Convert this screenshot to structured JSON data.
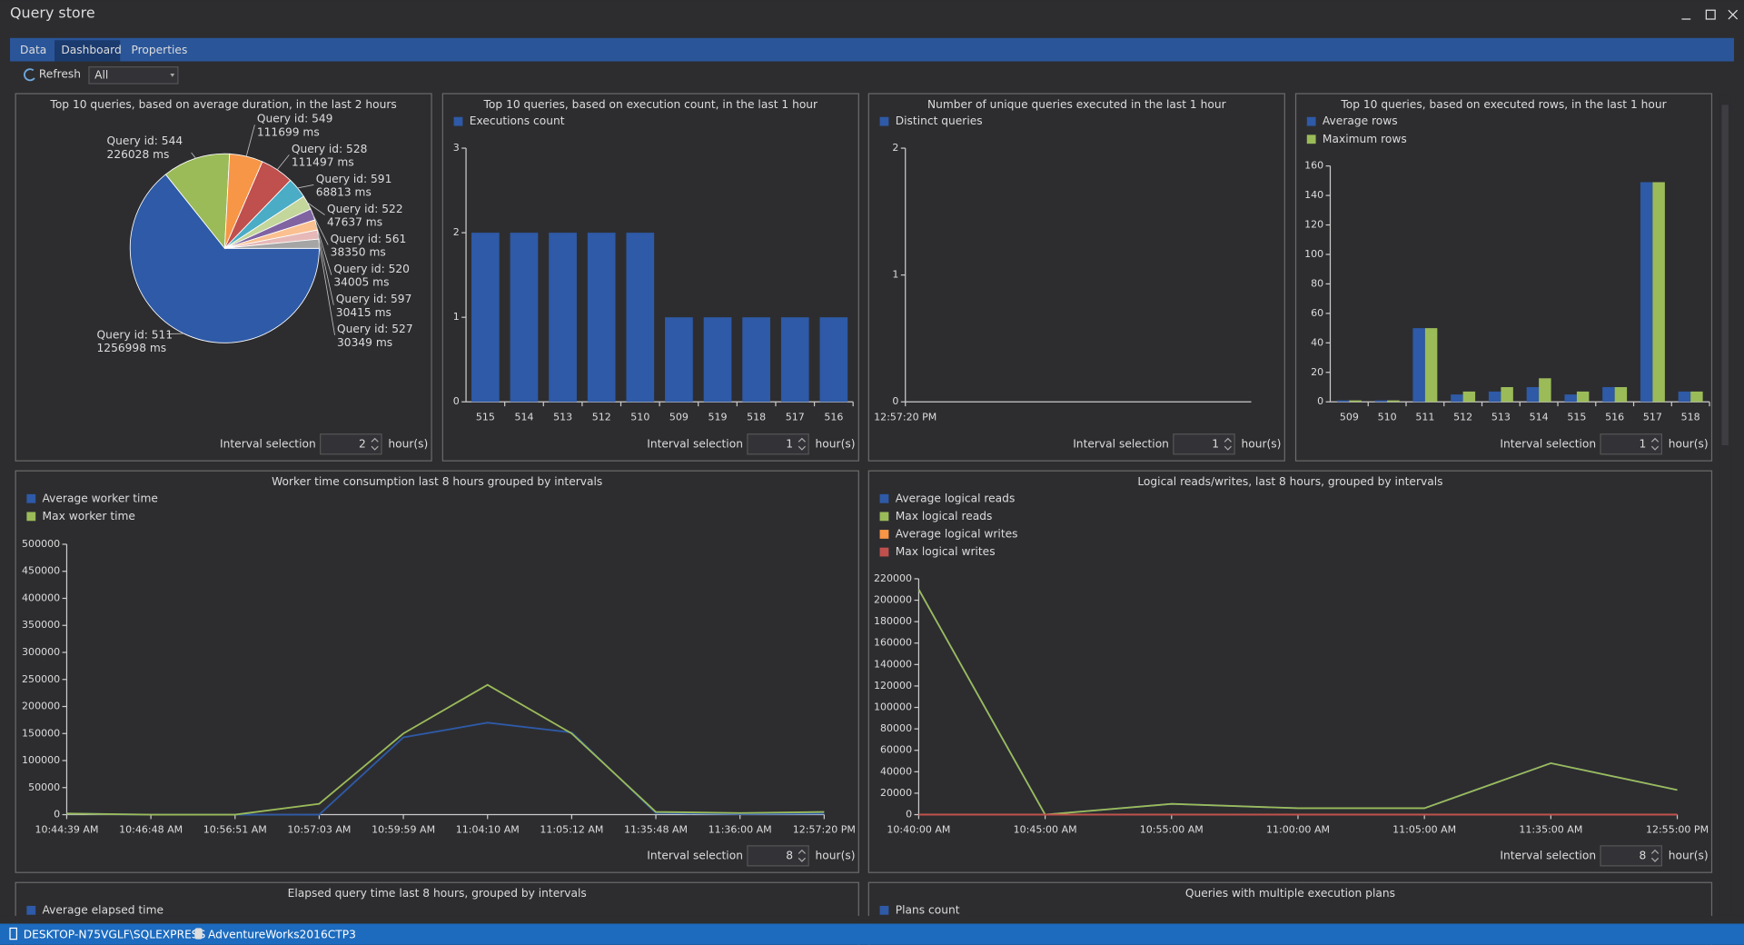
{
  "window": {
    "title": "Query store"
  },
  "tabs": [
    "Data",
    "Dashboard",
    "Properties"
  ],
  "toolbar": {
    "refresh": "Refresh",
    "filter": "All"
  },
  "status_bar": {
    "server": "DESKTOP-N75VGLF\\SQLEXPRESS",
    "database": "AdventureWorks2016CTP3"
  },
  "chart_data": [
    {
      "type": "pie",
      "title": "Top 10 queries, based on average duration, in the last 2 hours",
      "categories": [
        "Query id: 511",
        "Query id: 544",
        "Query id: 549",
        "Query id: 528",
        "Query id: 591",
        "Query id: 522",
        "Query id: 561",
        "Query id: 520",
        "Query id: 597",
        "Query id: 527"
      ],
      "values": [
        1256998,
        226028,
        111699,
        111497,
        68813,
        47637,
        38350,
        34005,
        30415,
        30349
      ],
      "value_labels": [
        "1256998 ms",
        "226028 ms",
        "111699 ms",
        "111497 ms",
        "68813 ms",
        "47637 ms",
        "38350 ms",
        "34005 ms",
        "30415 ms",
        "30349 ms"
      ],
      "colors": [
        "#2e5aa7",
        "#9bbb59",
        "#f79646",
        "#c0504d",
        "#4bacc6",
        "#c3d69b",
        "#8064a2",
        "#fac090",
        "#e6b9b8",
        "#a5a5a5"
      ],
      "interval": {
        "label": "Interval selection",
        "value": 2,
        "unit": "hour(s)"
      }
    },
    {
      "type": "bar",
      "title": "Top 10 queries, based on execution count, in the last 1 hour",
      "categories": [
        "515",
        "514",
        "513",
        "512",
        "510",
        "509",
        "519",
        "518",
        "517",
        "516"
      ],
      "series": [
        {
          "name": "Executions count",
          "color": "#2e5aa7",
          "values": [
            2,
            2,
            2,
            2,
            2,
            1,
            1,
            1,
            1,
            1
          ]
        }
      ],
      "ylim": [
        0,
        3
      ],
      "yticks": [
        0,
        1,
        2,
        3
      ],
      "interval": {
        "label": "Interval selection",
        "value": 1,
        "unit": "hour(s)"
      }
    },
    {
      "type": "line",
      "title": "Number of unique queries executed in the last 1 hour",
      "categories": [
        "12:57:20 PM"
      ],
      "series": [
        {
          "name": "Distinct queries",
          "color": "#2e5aa7",
          "values": [
            0
          ]
        }
      ],
      "ylim": [
        0,
        2
      ],
      "yticks": [
        0,
        1,
        2
      ],
      "interval": {
        "label": "Interval selection",
        "value": 1,
        "unit": "hour(s)"
      }
    },
    {
      "type": "bar",
      "title": "Top 10 queries, based on executed rows, in the last 1 hour",
      "categories": [
        "509",
        "510",
        "511",
        "512",
        "513",
        "514",
        "515",
        "516",
        "517",
        "518"
      ],
      "series": [
        {
          "name": "Average rows",
          "color": "#2e5aa7",
          "values": [
            1,
            1,
            50,
            5,
            7,
            10,
            5,
            10,
            149,
            7
          ]
        },
        {
          "name": "Maximum rows",
          "color": "#9bbb59",
          "values": [
            1,
            1,
            50,
            7,
            10,
            16,
            7,
            10,
            149,
            7
          ]
        }
      ],
      "ylim": [
        0,
        160
      ],
      "yticks": [
        0,
        20,
        40,
        60,
        80,
        100,
        120,
        140,
        160
      ],
      "interval": {
        "label": "Interval selection",
        "value": 1,
        "unit": "hour(s)"
      }
    },
    {
      "type": "line",
      "title": "Worker time consumption last 8 hours grouped by intervals",
      "categories": [
        "10:44:39 AM",
        "10:46:48 AM",
        "10:56:51 AM",
        "10:57:03 AM",
        "10:59:59 AM",
        "11:04:10 AM",
        "11:05:12 AM",
        "11:35:48 AM",
        "11:36:00 AM",
        "12:57:20 PM"
      ],
      "series": [
        {
          "name": "Average worker time",
          "color": "#2e5aa7",
          "values": [
            2000,
            0,
            0,
            0,
            143000,
            170000,
            152000,
            3000,
            1000,
            2000
          ]
        },
        {
          "name": "Max worker time",
          "color": "#9bbb59",
          "values": [
            2000,
            0,
            0,
            20000,
            150000,
            240000,
            150000,
            5000,
            3000,
            5000
          ]
        }
      ],
      "ylim": [
        0,
        500000
      ],
      "yticks": [
        0,
        50000,
        100000,
        150000,
        200000,
        250000,
        300000,
        350000,
        400000,
        450000,
        500000
      ],
      "interval": {
        "label": "Interval selection",
        "value": 8,
        "unit": "hour(s)"
      }
    },
    {
      "type": "line",
      "title": "Logical reads/writes, last 8 hours, grouped by intervals",
      "categories": [
        "10:40:00 AM",
        "10:45:00 AM",
        "10:55:00 AM",
        "11:00:00 AM",
        "11:05:00 AM",
        "11:35:00 AM",
        "12:55:00 PM"
      ],
      "series": [
        {
          "name": "Average logical reads",
          "color": "#2e5aa7",
          "values": [
            210000,
            0,
            10000,
            6000,
            6000,
            48000,
            23000
          ]
        },
        {
          "name": "Max logical reads",
          "color": "#9bbb59",
          "values": [
            210000,
            0,
            10000,
            6000,
            6000,
            48000,
            23000
          ]
        },
        {
          "name": "Average logical writes",
          "color": "#f79646",
          "values": [
            0,
            0,
            0,
            0,
            0,
            0,
            0
          ]
        },
        {
          "name": "Max logical writes",
          "color": "#c0504d",
          "values": [
            0,
            0,
            0,
            0,
            0,
            0,
            0
          ]
        }
      ],
      "ylim": [
        0,
        220000
      ],
      "yticks": [
        0,
        20000,
        40000,
        60000,
        80000,
        100000,
        120000,
        140000,
        160000,
        180000,
        200000,
        220000
      ],
      "interval": {
        "label": "Interval selection",
        "value": 8,
        "unit": "hour(s)"
      }
    },
    {
      "type": "line",
      "title": "Elapsed query time last 8 hours, grouped by intervals",
      "series": [
        {
          "name": "Average elapsed time",
          "color": "#2e5aa7"
        }
      ]
    },
    {
      "type": "line",
      "title": "Queries with multiple execution plans",
      "series": [
        {
          "name": "Plans count",
          "color": "#2e5aa7"
        }
      ]
    }
  ]
}
